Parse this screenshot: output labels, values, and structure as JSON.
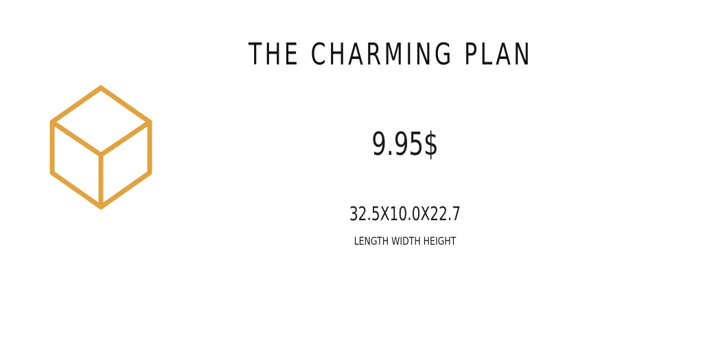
{
  "plan": {
    "title": "THE CHARMING PLAN",
    "price": "9.95$",
    "dimensions": "32.5X10.0X22.7",
    "dimensions_caption": "LENGTH WIDTH HEIGHT"
  },
  "icon": {
    "name": "cube-icon",
    "color": "#E0A33F"
  }
}
